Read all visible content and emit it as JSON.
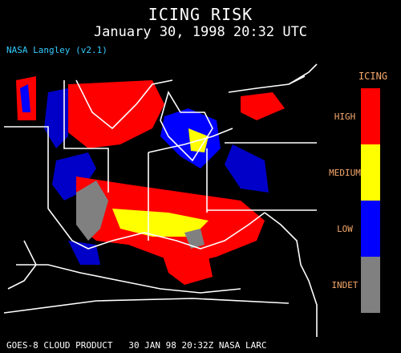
{
  "title": "ICING RISK",
  "subtitle": "January 30, 1998 20:32 UTC",
  "version": "NASA Langley (v2.1)",
  "footer": "GOES-8 CLOUD PRODUCT   30 JAN 98 20:32Z NASA LARC",
  "legend": {
    "title": "ICING",
    "items": [
      {
        "label": "HIGH",
        "color": "#ff0000"
      },
      {
        "label": "MEDIUM",
        "color": "#ffff00"
      },
      {
        "label": "LOW",
        "color": "#0000ff"
      },
      {
        "label": "INDET",
        "color": "#808080"
      }
    ]
  }
}
